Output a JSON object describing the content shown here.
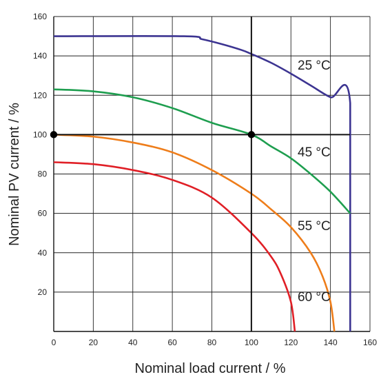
{
  "chart_data": {
    "type": "line",
    "title": "",
    "xlabel": "Nominal load current / %",
    "ylabel": "Nominal PV current / %",
    "xlim": [
      0,
      160
    ],
    "ylim": [
      0,
      160
    ],
    "x_ticks": [
      "0",
      "20",
      "40",
      "60",
      "80",
      "100",
      "120",
      "140",
      "160"
    ],
    "y_ticks": [
      "20",
      "40",
      "60",
      "80",
      "100",
      "120",
      "140",
      "160"
    ],
    "grid": true,
    "reference_lines": {
      "x": 100,
      "y": 100
    },
    "reference_points": [
      {
        "x": 0,
        "y": 100
      },
      {
        "x": 100,
        "y": 100
      }
    ],
    "series": [
      {
        "name": "25 °C",
        "color": "#3c3491",
        "points": [
          [
            0,
            150
          ],
          [
            66,
            150
          ],
          [
            75,
            148.5
          ],
          [
            85,
            146
          ],
          [
            95,
            143
          ],
          [
            100,
            141
          ],
          [
            110,
            136.5
          ],
          [
            120,
            131
          ],
          [
            130,
            125
          ],
          [
            140,
            119
          ],
          [
            150,
            116
          ],
          [
            150,
            0
          ]
        ]
      },
      {
        "name": "45 °C",
        "color": "#1e9e4f",
        "points": [
          [
            0,
            123
          ],
          [
            20,
            122
          ],
          [
            40,
            119
          ],
          [
            60,
            113.5
          ],
          [
            80,
            106
          ],
          [
            100,
            100
          ],
          [
            110,
            94
          ],
          [
            120,
            88
          ],
          [
            130,
            80
          ],
          [
            140,
            71
          ],
          [
            150,
            60
          ]
        ]
      },
      {
        "name": "55 °C",
        "color": "#ee7d1a",
        "points": [
          [
            0,
            100
          ],
          [
            20,
            99
          ],
          [
            40,
            96
          ],
          [
            60,
            91
          ],
          [
            80,
            82
          ],
          [
            100,
            70
          ],
          [
            110,
            62
          ],
          [
            120,
            53
          ],
          [
            130,
            40
          ],
          [
            136,
            28
          ],
          [
            140,
            15
          ],
          [
            142,
            0
          ]
        ]
      },
      {
        "name": "60 °C",
        "color": "#e01f26",
        "points": [
          [
            0,
            86
          ],
          [
            20,
            85
          ],
          [
            40,
            82
          ],
          [
            60,
            77
          ],
          [
            80,
            68
          ],
          [
            100,
            50
          ],
          [
            110,
            38
          ],
          [
            115,
            29
          ],
          [
            120,
            15
          ],
          [
            122,
            0
          ]
        ]
      }
    ]
  }
}
